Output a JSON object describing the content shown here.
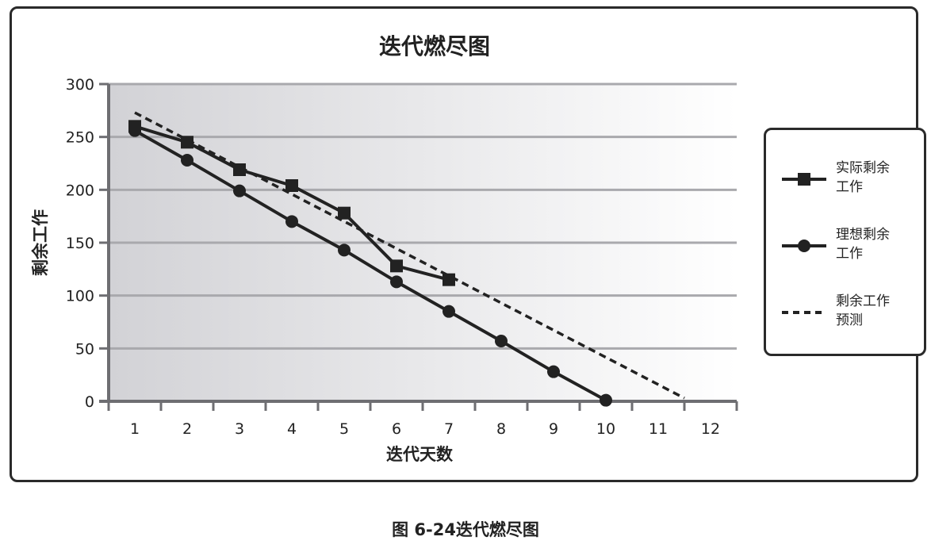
{
  "chart_data": {
    "type": "line",
    "title": "迭代燃尽图",
    "xlabel": "迭代天数",
    "ylabel": "剩余工作",
    "x_ticks": [
      "1",
      "2",
      "3",
      "4",
      "5",
      "6",
      "7",
      "8",
      "9",
      "10",
      "11",
      "12"
    ],
    "y_ticks": [
      "0",
      "50",
      "100",
      "150",
      "200",
      "250",
      "300"
    ],
    "xlim": [
      0.5,
      12.5
    ],
    "ylim": [
      0,
      300
    ],
    "grid": true,
    "legend_position": "right",
    "series": [
      {
        "name": "实际剩余工作",
        "style": "solid",
        "marker": "square",
        "x": [
          1,
          2,
          3,
          4,
          5,
          6,
          7
        ],
        "y": [
          260,
          245,
          219,
          204,
          178,
          128,
          115
        ]
      },
      {
        "name": "理想剩余工作",
        "style": "solid",
        "marker": "circle",
        "x": [
          1,
          2,
          3,
          4,
          5,
          6,
          7,
          8,
          9,
          10
        ],
        "y": [
          256,
          228,
          199,
          170,
          143,
          113,
          85,
          57,
          28,
          1
        ]
      },
      {
        "name": "剩余工作预测",
        "style": "dashed",
        "marker": "none",
        "x": [
          1,
          11.5
        ],
        "y": [
          273,
          3
        ]
      }
    ]
  },
  "legend": {
    "items": [
      {
        "line1": "实际剩余",
        "line2": "工作"
      },
      {
        "line1": "理想剩余",
        "line2": "工作"
      },
      {
        "line1": "剩余工作",
        "line2": "预测"
      }
    ]
  },
  "caption": "图 6-24迭代燃尽图",
  "colors": {
    "line": "#222222",
    "grid": "#a9a9ad",
    "plot_bg_left": "#d2d2d6",
    "plot_bg_right": "#ffffff"
  }
}
